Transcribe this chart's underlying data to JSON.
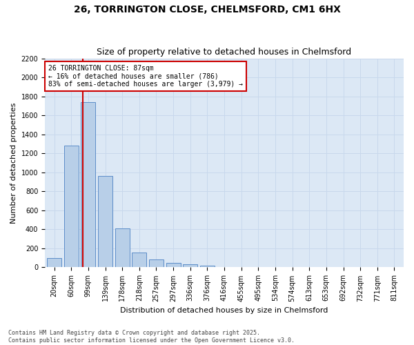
{
  "title_line1": "26, TORRINGTON CLOSE, CHELMSFORD, CM1 6HX",
  "title_line2": "Size of property relative to detached houses in Chelmsford",
  "xlabel": "Distribution of detached houses by size in Chelmsford",
  "ylabel": "Number of detached properties",
  "categories": [
    "20sqm",
    "60sqm",
    "99sqm",
    "139sqm",
    "178sqm",
    "218sqm",
    "257sqm",
    "297sqm",
    "336sqm",
    "376sqm",
    "416sqm",
    "455sqm",
    "495sqm",
    "534sqm",
    "574sqm",
    "613sqm",
    "653sqm",
    "692sqm",
    "732sqm",
    "771sqm",
    "811sqm"
  ],
  "values": [
    100,
    1280,
    1740,
    960,
    410,
    155,
    80,
    50,
    30,
    20,
    0,
    0,
    0,
    0,
    0,
    0,
    0,
    0,
    0,
    0,
    0
  ],
  "bar_color": "#b8cfe8",
  "bar_edge_color": "#5b8cc8",
  "grid_color": "#c8d8ec",
  "background_color": "#dce8f5",
  "vline_color": "#cc0000",
  "annotation_text": "26 TORRINGTON CLOSE: 87sqm\n← 16% of detached houses are smaller (786)\n83% of semi-detached houses are larger (3,979) →",
  "annotation_box_color": "#cc0000",
  "ylim": [
    0,
    2200
  ],
  "yticks": [
    0,
    200,
    400,
    600,
    800,
    1000,
    1200,
    1400,
    1600,
    1800,
    2000,
    2200
  ],
  "footer_line1": "Contains HM Land Registry data © Crown copyright and database right 2025.",
  "footer_line2": "Contains public sector information licensed under the Open Government Licence v3.0.",
  "title1_fontsize": 10,
  "title2_fontsize": 9,
  "ylabel_fontsize": 8,
  "xlabel_fontsize": 8,
  "tick_fontsize": 7,
  "footer_fontsize": 6,
  "ann_fontsize": 7
}
